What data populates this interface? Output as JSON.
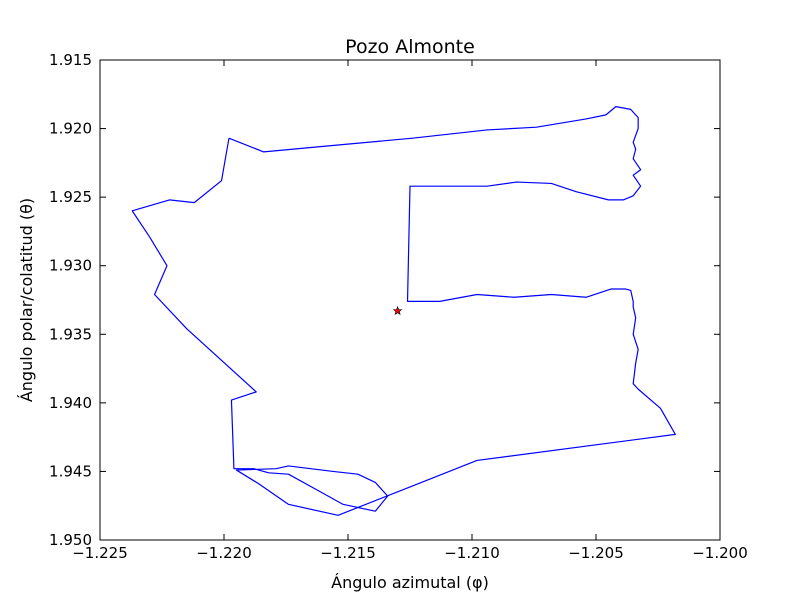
{
  "chart_data": {
    "type": "line",
    "title": "Pozo Almonte",
    "xlabel": "Ángulo azimutal (φ)",
    "ylabel": "Ángulo polar/colatitud (θ)",
    "xlim": [
      -1.225,
      -1.2
    ],
    "ylim": [
      1.915,
      1.95
    ],
    "y_inverted": true,
    "grid": false,
    "x_ticks": [
      -1.225,
      -1.22,
      -1.215,
      -1.21,
      -1.205,
      -1.2
    ],
    "x_tick_labels": [
      "−1.225",
      "−1.220",
      "−1.215",
      "−1.210",
      "−1.205",
      "−1.200"
    ],
    "y_ticks": [
      1.915,
      1.92,
      1.925,
      1.93,
      1.935,
      1.94,
      1.945,
      1.95
    ],
    "y_tick_labels": [
      "1.915",
      "1.920",
      "1.925",
      "1.930",
      "1.935",
      "1.940",
      "1.945",
      "1.950"
    ],
    "series": [
      {
        "color": "#0000ff",
        "x": [
          -1.2198,
          -1.2184,
          -1.2154,
          -1.2124,
          -1.2094,
          -1.2074,
          -1.2054,
          -1.2046,
          -1.2042,
          -1.2036,
          -1.2033,
          -1.2033,
          -1.2035,
          -1.2034,
          -1.2035,
          -1.2032,
          -1.2035,
          -1.2032,
          -1.2035,
          -1.2039,
          -1.2045,
          -1.2058,
          -1.2068,
          -1.2082,
          -1.2094,
          -1.2112,
          -1.2125,
          -1.2126,
          -1.2113,
          -1.2098,
          -1.2083,
          -1.2068,
          -1.2054,
          -1.2044,
          -1.2038,
          -1.2036,
          -1.2035,
          -1.2035,
          -1.2034,
          -1.2035,
          -1.2033,
          -1.2034,
          -1.2035,
          -1.2033,
          -1.2024,
          -1.2018,
          -1.2098,
          -1.2126,
          -1.2154,
          -1.2174,
          -1.2186,
          -1.2195,
          -1.2195,
          -1.2179,
          -1.2174,
          -1.2156,
          -1.2146,
          -1.2139,
          -1.2134,
          -1.2139,
          -1.2152,
          -1.2164,
          -1.2174,
          -1.2182,
          -1.2188,
          -1.2196,
          -1.2197,
          -1.2187,
          -1.2215,
          -1.2228,
          -1.2223,
          -1.223,
          -1.2237,
          -1.2222,
          -1.2212,
          -1.2201,
          -1.2198
        ],
        "y": [
          1.9207,
          1.9217,
          1.9212,
          1.9207,
          1.9201,
          1.9199,
          1.9193,
          1.919,
          1.9184,
          1.9186,
          1.9192,
          1.92,
          1.921,
          1.9215,
          1.9222,
          1.923,
          1.9234,
          1.9242,
          1.9249,
          1.9252,
          1.9252,
          1.9246,
          1.924,
          1.9239,
          1.9242,
          1.9242,
          1.9242,
          1.9326,
          1.9326,
          1.9321,
          1.9323,
          1.9321,
          1.9323,
          1.9317,
          1.9317,
          1.9318,
          1.9326,
          1.933,
          1.9338,
          1.935,
          1.9361,
          1.9371,
          1.9386,
          1.939,
          1.9404,
          1.9423,
          1.9442,
          1.9462,
          1.9482,
          1.9474,
          1.9459,
          1.9449,
          1.9449,
          1.9448,
          1.9446,
          1.945,
          1.9452,
          1.9458,
          1.9468,
          1.9479,
          1.9474,
          1.9462,
          1.9452,
          1.9451,
          1.9448,
          1.9448,
          1.9398,
          1.9392,
          1.9346,
          1.9321,
          1.93,
          1.9279,
          1.926,
          1.9252,
          1.9254,
          1.9238,
          1.9207
        ]
      }
    ],
    "marker": {
      "x": -1.213,
      "y": 1.9333,
      "symbol": "star",
      "color": "#ff0000"
    }
  }
}
